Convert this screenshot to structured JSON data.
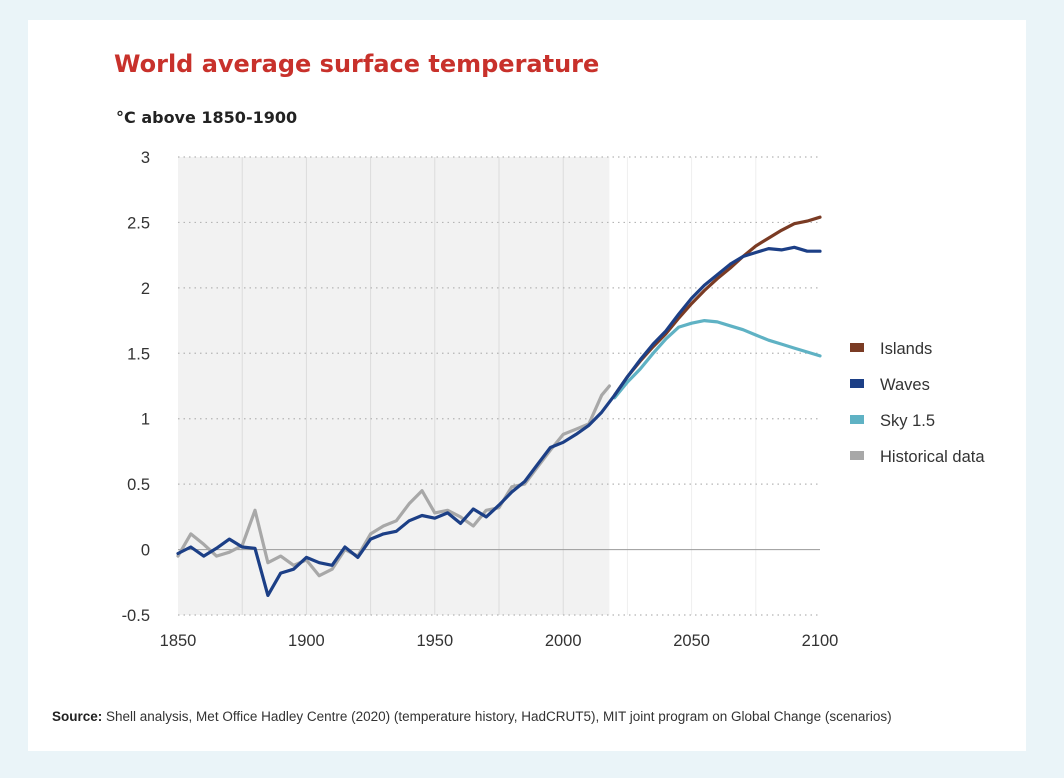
{
  "title": "World average surface temperature",
  "units_label": "°C above 1850-1900",
  "source": {
    "label": "Source:",
    "text": " Shell analysis, Met Office Hadley Centre (2020) (temperature history, HadCRUT5), MIT joint program on Global Change (scenarios)"
  },
  "colors": {
    "title": "#c8312b",
    "historical": "#a8a8a8",
    "islands": "#7a3b24",
    "waves": "#1c3f86",
    "sky": "#5fb2c4",
    "shade": "#f2f2f2",
    "background": "#eaf4f8"
  },
  "chart_data": {
    "type": "line",
    "title": "World average surface temperature",
    "ylabel": "°C above 1850-1900",
    "xlim": [
      1850,
      2100
    ],
    "ylim": [
      -0.5,
      3
    ],
    "x_ticks": [
      "1850",
      "1900",
      "1950",
      "2000",
      "2050",
      "2100"
    ],
    "y_ticks": [
      "-0.5",
      "0",
      "0.5",
      "1",
      "1.5",
      "2",
      "2.5",
      "3"
    ],
    "historical_shading": [
      1850,
      2018
    ],
    "grid": "horizontal dotted",
    "legend_position": "right",
    "series": [
      {
        "name": "Islands",
        "color": "#7a3b24",
        "x": [
          2020,
          2025,
          2030,
          2035,
          2040,
          2045,
          2050,
          2055,
          2060,
          2065,
          2070,
          2075,
          2080,
          2085,
          2090,
          2095,
          2100
        ],
        "y": [
          1.18,
          1.32,
          1.44,
          1.55,
          1.65,
          1.77,
          1.88,
          1.98,
          2.07,
          2.15,
          2.24,
          2.32,
          2.38,
          2.44,
          2.49,
          2.51,
          2.54
        ]
      },
      {
        "name": "Waves",
        "color": "#1c3f86",
        "x": [
          1850,
          1855,
          1860,
          1865,
          1870,
          1875,
          1880,
          1885,
          1890,
          1895,
          1900,
          1905,
          1910,
          1915,
          1920,
          1925,
          1930,
          1935,
          1940,
          1945,
          1950,
          1955,
          1960,
          1965,
          1970,
          1975,
          1980,
          1985,
          1990,
          1995,
          2000,
          2005,
          2010,
          2015,
          2020,
          2025,
          2030,
          2035,
          2040,
          2045,
          2050,
          2055,
          2060,
          2065,
          2070,
          2075,
          2080,
          2085,
          2090,
          2095,
          2100
        ],
        "y": [
          -0.03,
          0.02,
          -0.05,
          0.01,
          0.08,
          0.02,
          0.01,
          -0.35,
          -0.18,
          -0.15,
          -0.06,
          -0.1,
          -0.12,
          0.02,
          -0.06,
          0.08,
          0.12,
          0.14,
          0.22,
          0.26,
          0.24,
          0.28,
          0.2,
          0.31,
          0.25,
          0.34,
          0.44,
          0.52,
          0.65,
          0.78,
          0.82,
          0.88,
          0.95,
          1.05,
          1.18,
          1.32,
          1.45,
          1.57,
          1.67,
          1.8,
          1.92,
          2.02,
          2.1,
          2.18,
          2.24,
          2.27,
          2.3,
          2.29,
          2.31,
          2.28,
          2.28
        ]
      },
      {
        "name": "Sky 1.5",
        "color": "#5fb2c4",
        "x": [
          2020,
          2025,
          2030,
          2035,
          2040,
          2045,
          2050,
          2055,
          2060,
          2065,
          2070,
          2075,
          2080,
          2085,
          2090,
          2095,
          2100
        ],
        "y": [
          1.16,
          1.28,
          1.38,
          1.5,
          1.61,
          1.7,
          1.73,
          1.75,
          1.74,
          1.71,
          1.68,
          1.64,
          1.6,
          1.57,
          1.54,
          1.51,
          1.48
        ]
      },
      {
        "name": "Historical data",
        "color": "#a8a8a8",
        "x": [
          1850,
          1855,
          1860,
          1865,
          1870,
          1875,
          1880,
          1885,
          1890,
          1895,
          1900,
          1905,
          1910,
          1915,
          1920,
          1925,
          1930,
          1935,
          1940,
          1945,
          1950,
          1955,
          1960,
          1965,
          1970,
          1975,
          1980,
          1985,
          1990,
          1995,
          2000,
          2005,
          2010,
          2015,
          2018
        ],
        "y": [
          -0.05,
          0.12,
          0.04,
          -0.05,
          -0.02,
          0.03,
          0.3,
          -0.1,
          -0.05,
          -0.12,
          -0.08,
          -0.2,
          -0.15,
          0.0,
          -0.05,
          0.12,
          0.18,
          0.22,
          0.35,
          0.45,
          0.28,
          0.3,
          0.25,
          0.18,
          0.3,
          0.32,
          0.48,
          0.5,
          0.63,
          0.76,
          0.88,
          0.92,
          0.96,
          1.18,
          1.25
        ]
      }
    ]
  }
}
